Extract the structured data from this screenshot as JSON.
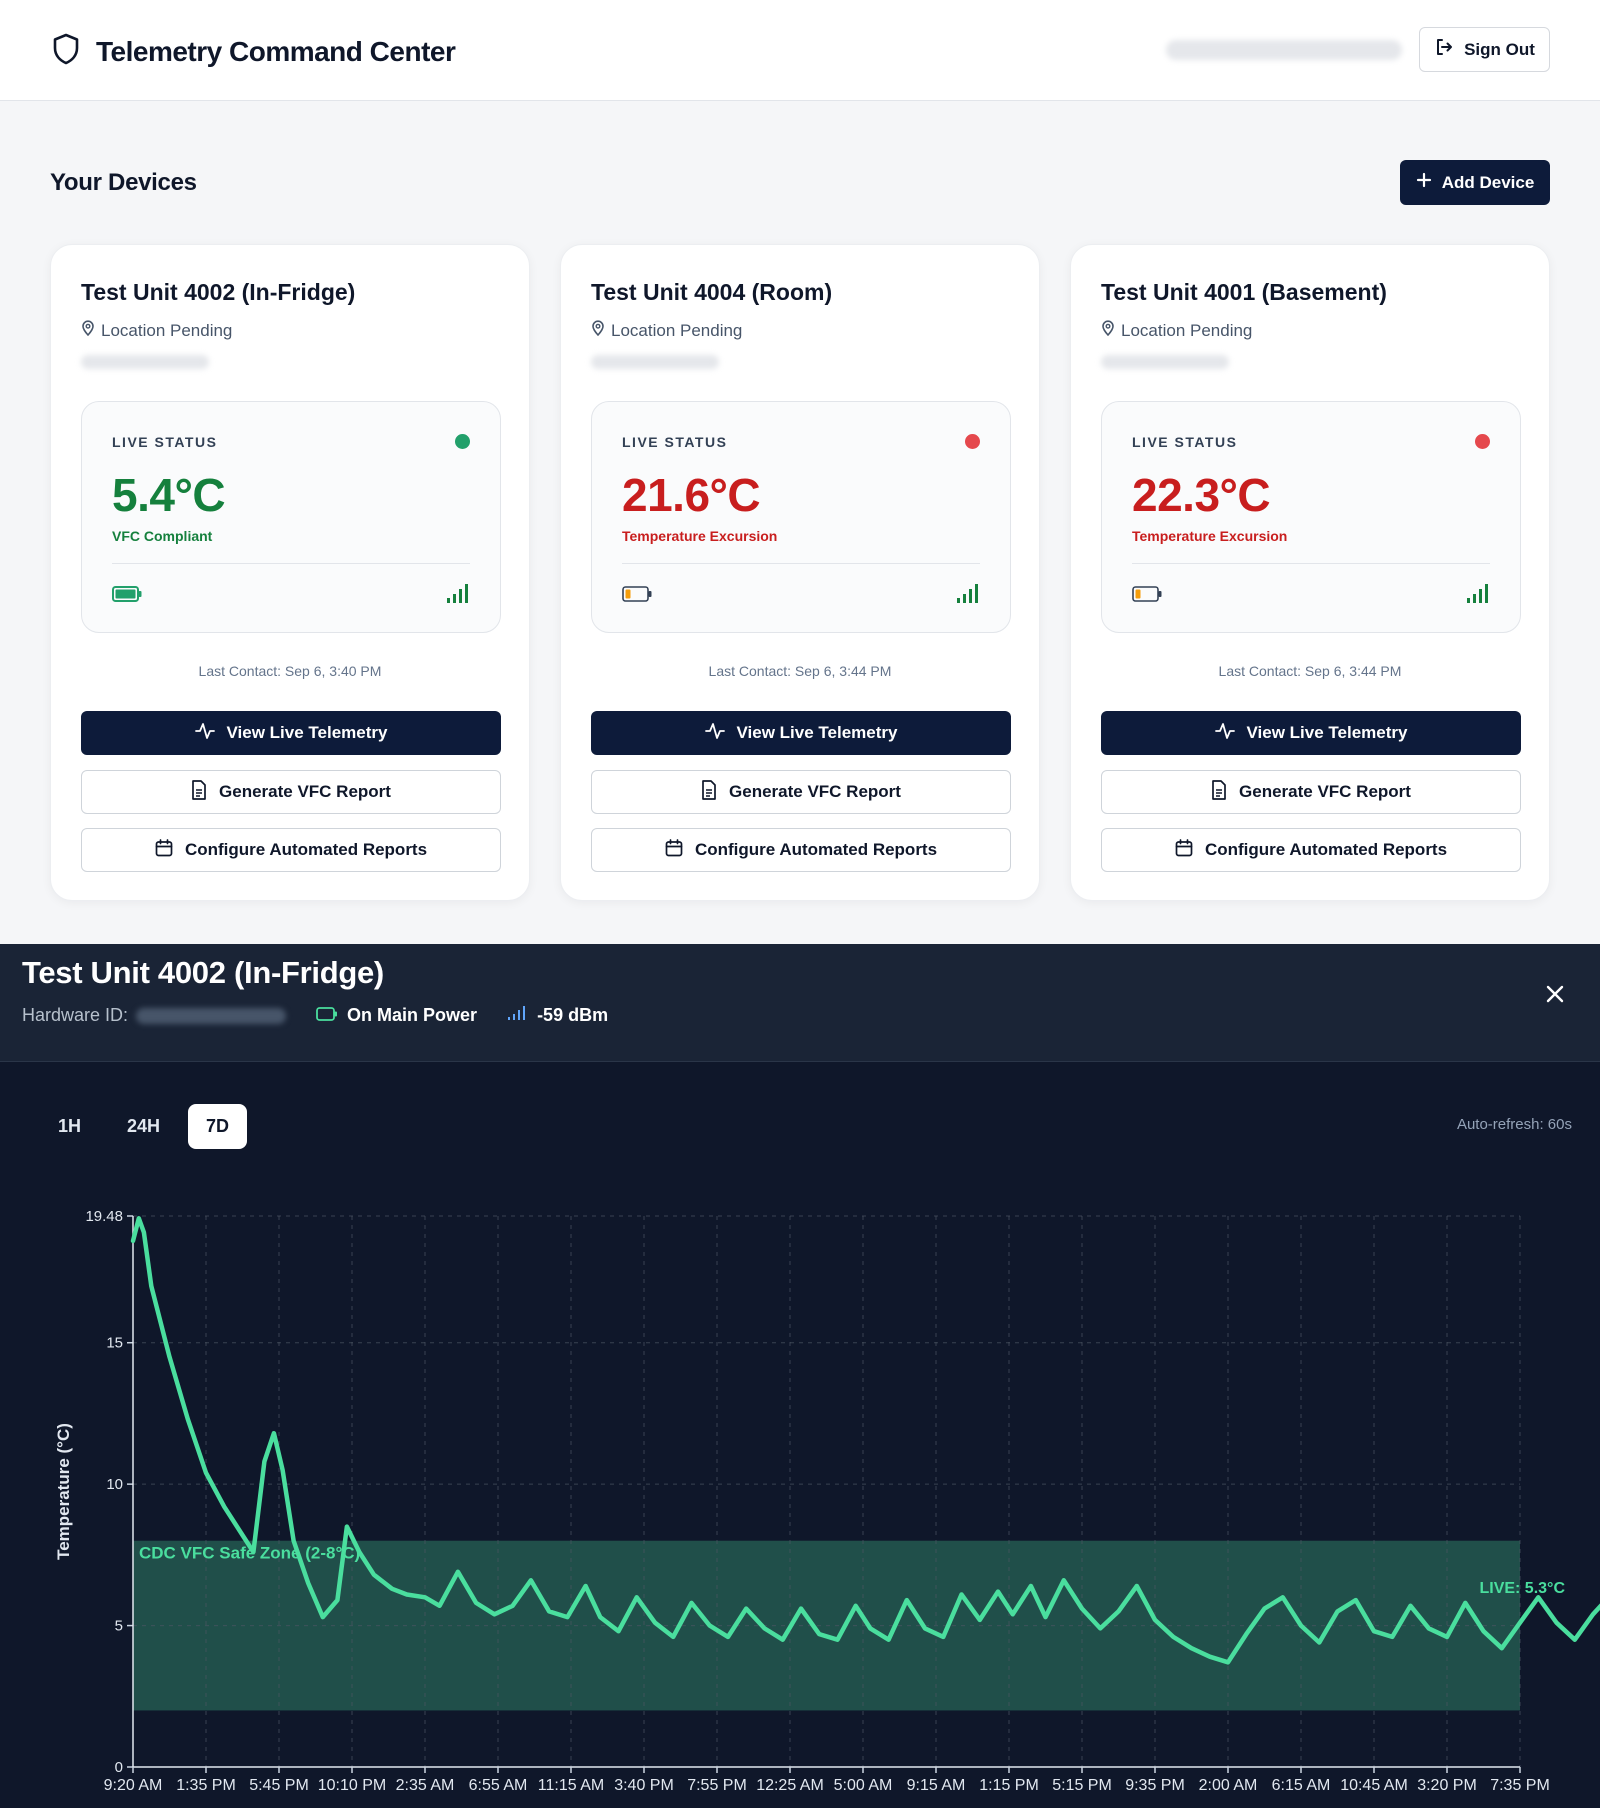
{
  "app": {
    "title": "Telemetry Command Center",
    "sign_out_label": "Sign Out"
  },
  "devices_section": {
    "title": "Your Devices",
    "add_device_label": "Add Device"
  },
  "devices": [
    {
      "name": "Test Unit 4002 (In-Fridge)",
      "location": "Location Pending",
      "status_label": "LIVE STATUS",
      "temperature": "5.4°C",
      "compliance": "VFC Compliant",
      "status": "ok",
      "status_color": "#22a06b",
      "temp_color": "#15803d",
      "battery": "full",
      "last_contact": "Last Contact: Sep 6, 3:40 PM",
      "view_label": "View Live Telemetry",
      "report_label": "Generate VFC Report",
      "config_label": "Configure Automated Reports"
    },
    {
      "name": "Test Unit 4004 (Room)",
      "location": "Location Pending",
      "status_label": "LIVE STATUS",
      "temperature": "21.6°C",
      "compliance": "Temperature Excursion",
      "status": "alert",
      "status_color": "#e5484d",
      "temp_color": "#c81e1e",
      "battery": "low",
      "last_contact": "Last Contact: Sep 6, 3:44 PM",
      "view_label": "View Live Telemetry",
      "report_label": "Generate VFC Report",
      "config_label": "Configure Automated Reports"
    },
    {
      "name": "Test Unit 4001 (Basement)",
      "location": "Location Pending",
      "status_label": "LIVE STATUS",
      "temperature": "22.3°C",
      "compliance": "Temperature Excursion",
      "status": "alert",
      "status_color": "#e5484d",
      "temp_color": "#c81e1e",
      "battery": "low",
      "last_contact": "Last Contact: Sep 6, 3:44 PM",
      "view_label": "View Live Telemetry",
      "report_label": "Generate VFC Report",
      "config_label": "Configure Automated Reports"
    }
  ],
  "telemetry": {
    "device_name": "Test Unit 4002 (In-Fridge)",
    "hardware_id_label": "Hardware ID:",
    "power_status": "On Main Power",
    "signal": "-59 dBm",
    "ranges": [
      "1H",
      "24H",
      "7D"
    ],
    "active_range": "7D",
    "auto_refresh": "Auto-refresh: 60s"
  },
  "colors": {
    "line": "#4ade9e",
    "safe_zone": "#2f7d64",
    "navy": "#0d1b3a",
    "ok": "#22a06b",
    "alert": "#e5484d"
  },
  "chart_data": {
    "type": "line",
    "title": "",
    "xlabel": "",
    "ylabel": "Temperature (°C)",
    "ylim": [
      0,
      19.48
    ],
    "y_ticks": [
      0,
      5,
      10,
      15,
      19.48
    ],
    "x_ticks": [
      "9:20 AM",
      "1:35 PM",
      "5:45 PM",
      "10:10 PM",
      "2:35 AM",
      "6:55 AM",
      "11:15 AM",
      "3:40 PM",
      "7:55 PM",
      "12:25 AM",
      "5:00 AM",
      "9:15 AM",
      "1:15 PM",
      "5:15 PM",
      "9:35 PM",
      "2:00 AM",
      "6:15 AM",
      "10:45 AM",
      "3:20 PM",
      "7:35 PM"
    ],
    "grid": true,
    "safe_zone": {
      "label": "CDC VFC Safe Zone (2-8°C)",
      "min": 2,
      "max": 8
    },
    "live_label": "LIVE: 5.3°C",
    "series": [
      {
        "values": [
          [
            0.0,
            18.6
          ],
          [
            0.08,
            19.4
          ],
          [
            0.15,
            18.9
          ],
          [
            0.25,
            17.0
          ],
          [
            0.5,
            14.5
          ],
          [
            0.75,
            12.3
          ],
          [
            1.0,
            10.4
          ],
          [
            1.25,
            9.2
          ],
          [
            1.5,
            8.2
          ],
          [
            1.65,
            7.6
          ],
          [
            1.8,
            10.8
          ],
          [
            1.93,
            11.8
          ],
          [
            2.05,
            10.5
          ],
          [
            2.2,
            8.0
          ],
          [
            2.4,
            6.5
          ],
          [
            2.6,
            5.3
          ],
          [
            2.8,
            5.9
          ],
          [
            2.93,
            8.5
          ],
          [
            3.1,
            7.6
          ],
          [
            3.3,
            6.8
          ],
          [
            3.55,
            6.3
          ],
          [
            3.75,
            6.1
          ],
          [
            4.0,
            6.0
          ],
          [
            4.2,
            5.7
          ],
          [
            4.45,
            6.9
          ],
          [
            4.7,
            5.8
          ],
          [
            4.95,
            5.4
          ],
          [
            5.2,
            5.7
          ],
          [
            5.45,
            6.6
          ],
          [
            5.7,
            5.5
          ],
          [
            5.95,
            5.3
          ],
          [
            6.2,
            6.4
          ],
          [
            6.4,
            5.3
          ],
          [
            6.65,
            4.8
          ],
          [
            6.9,
            6.0
          ],
          [
            7.15,
            5.1
          ],
          [
            7.4,
            4.6
          ],
          [
            7.65,
            5.8
          ],
          [
            7.9,
            5.0
          ],
          [
            8.15,
            4.6
          ],
          [
            8.4,
            5.6
          ],
          [
            8.65,
            4.9
          ],
          [
            8.9,
            4.5
          ],
          [
            9.15,
            5.6
          ],
          [
            9.4,
            4.7
          ],
          [
            9.65,
            4.5
          ],
          [
            9.9,
            5.7
          ],
          [
            10.1,
            4.9
          ],
          [
            10.35,
            4.5
          ],
          [
            10.6,
            5.9
          ],
          [
            10.85,
            4.9
          ],
          [
            11.1,
            4.6
          ],
          [
            11.35,
            6.1
          ],
          [
            11.6,
            5.2
          ],
          [
            11.85,
            6.2
          ],
          [
            12.05,
            5.4
          ],
          [
            12.3,
            6.4
          ],
          [
            12.5,
            5.3
          ],
          [
            12.75,
            6.6
          ],
          [
            13.0,
            5.6
          ],
          [
            13.25,
            4.9
          ],
          [
            13.5,
            5.5
          ],
          [
            13.75,
            6.4
          ],
          [
            14.0,
            5.2
          ],
          [
            14.25,
            4.6
          ],
          [
            14.5,
            4.2
          ],
          [
            14.75,
            3.9
          ],
          [
            15.0,
            3.7
          ],
          [
            15.25,
            4.7
          ],
          [
            15.5,
            5.6
          ],
          [
            15.75,
            6.0
          ],
          [
            16.0,
            5.0
          ],
          [
            16.25,
            4.4
          ],
          [
            16.5,
            5.5
          ],
          [
            16.75,
            5.9
          ],
          [
            17.0,
            4.8
          ],
          [
            17.25,
            4.6
          ],
          [
            17.5,
            5.7
          ],
          [
            17.75,
            4.9
          ],
          [
            18.0,
            4.6
          ],
          [
            18.25,
            5.8
          ],
          [
            18.5,
            4.8
          ],
          [
            18.75,
            4.2
          ],
          [
            19.0,
            5.1
          ],
          [
            19.25,
            6.0
          ],
          [
            19.5,
            5.1
          ],
          [
            19.75,
            4.5
          ],
          [
            20.0,
            5.4
          ],
          [
            20.25,
            6.1
          ],
          [
            20.5,
            5.0
          ],
          [
            20.75,
            4.4
          ],
          [
            21.0,
            5.6
          ],
          [
            21.25,
            6.0
          ],
          [
            21.5,
            5.0
          ],
          [
            21.75,
            4.2
          ],
          [
            22.0,
            5.0
          ],
          [
            22.25,
            5.9
          ],
          [
            22.5,
            5.0
          ],
          [
            22.75,
            4.4
          ],
          [
            23.0,
            5.2
          ],
          [
            23.25,
            5.9
          ],
          [
            23.5,
            5.2
          ],
          [
            23.75,
            4.5
          ],
          [
            24.0,
            5.1
          ],
          [
            24.25,
            5.9
          ],
          [
            24.5,
            5.2
          ],
          [
            24.75,
            4.9
          ],
          [
            25.0,
            4.7
          ],
          [
            25.25,
            5.7
          ],
          [
            25.5,
            5.9
          ],
          [
            25.75,
            5.1
          ],
          [
            26.0,
            4.6
          ],
          [
            26.25,
            5.6
          ],
          [
            26.5,
            6.0
          ],
          [
            26.75,
            5.3
          ],
          [
            27.0,
            4.8
          ],
          [
            27.25,
            4.6
          ],
          [
            27.5,
            5.8
          ],
          [
            27.75,
            5.0
          ],
          [
            28.0,
            4.4
          ],
          [
            28.25,
            5.6
          ],
          [
            28.5,
            6.1
          ],
          [
            28.75,
            5.2
          ],
          [
            29.0,
            4.7
          ],
          [
            29.25,
            6.0
          ],
          [
            29.45,
            5.3
          ],
          [
            29.65,
            4.8
          ],
          [
            29.85,
            5.2
          ],
          [
            30.0,
            5.3
          ]
        ]
      }
    ]
  }
}
